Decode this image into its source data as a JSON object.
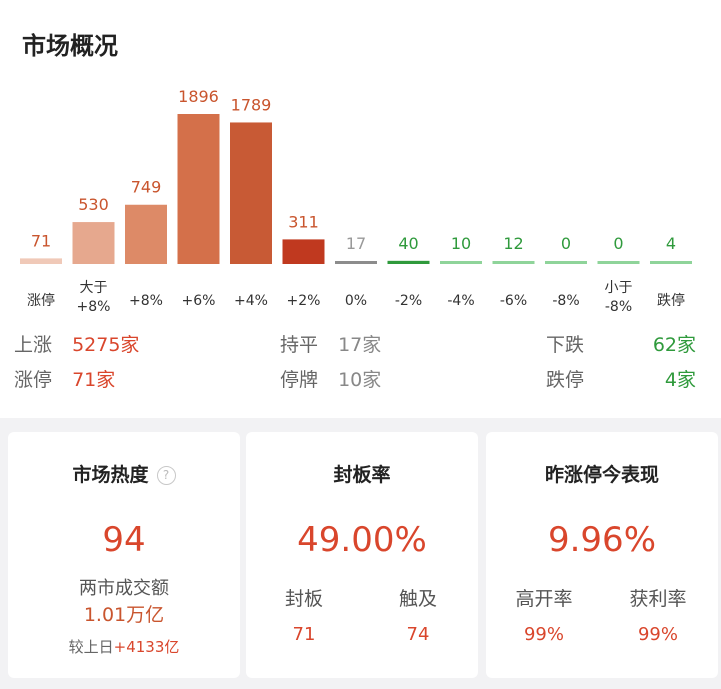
{
  "title": "市场概况",
  "chart_data": {
    "type": "bar",
    "categories": [
      "涨停",
      "大于\n+8%",
      "+8%",
      "+6%",
      "+4%",
      "+2%",
      "0%",
      "-2%",
      "-4%",
      "-6%",
      "-8%",
      "小于\n-8%",
      "跌停"
    ],
    "values": [
      71,
      530,
      749,
      1896,
      1789,
      311,
      17,
      40,
      10,
      12,
      0,
      0,
      4
    ],
    "colors": [
      "#f0c9b8",
      "#e6a88e",
      "#dd8a67",
      "#d4704a",
      "#c85a35",
      "#c0391f",
      "#8c8c8c",
      "#2f9a3c",
      "#8fd49a",
      "#8fd49a",
      "#8fd49a",
      "#8fd49a",
      "#8fd49a"
    ],
    "label_colors": [
      "#c9552e",
      "#c9552e",
      "#c9552e",
      "#c9552e",
      "#c9552e",
      "#c9552e",
      "#999999",
      "#2f9a3c",
      "#2f9a3c",
      "#2f9a3c",
      "#2f9a3c",
      "#2f9a3c",
      "#2f9a3c"
    ],
    "ylim": [
      0,
      1896
    ]
  },
  "summary": {
    "up_label": "上涨",
    "up_value": "5275家",
    "flat_label": "持平",
    "flat_value": "17家",
    "down_label": "下跌",
    "down_value": "62家",
    "limit_up_label": "涨停",
    "limit_up_value": "71家",
    "halt_label": "停牌",
    "halt_value": "10家",
    "limit_down_label": "跌停",
    "limit_down_value": "4家"
  },
  "cards": {
    "heat": {
      "title": "市场热度",
      "help_icon": "?",
      "value": "94",
      "turnover_label": "两市成交额",
      "turnover_value": "1.01万亿",
      "compare_label": "较上日",
      "compare_value": "+4133亿"
    },
    "seal": {
      "title": "封板率",
      "value": "49.00%",
      "left_label": "封板",
      "left_value": "71",
      "right_label": "触及",
      "right_value": "74"
    },
    "yesterday": {
      "title": "昨涨停今表现",
      "value": "9.96%",
      "left_label": "高开率",
      "left_value": "99%",
      "right_label": "获利率",
      "right_value": "99%"
    }
  }
}
